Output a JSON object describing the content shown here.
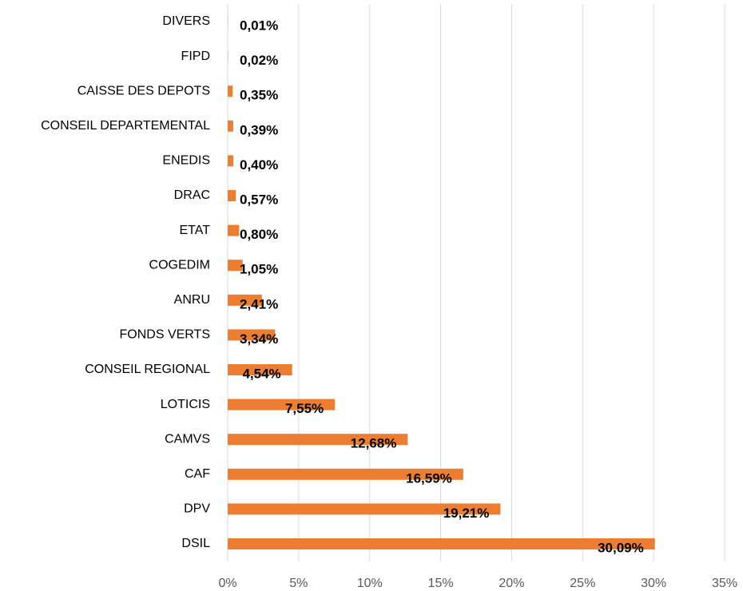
{
  "chart_data": {
    "type": "barh",
    "categories": [
      "DIVERS",
      "FIPD",
      "CAISSE DES DEPOTS",
      "CONSEIL DEPARTEMENTAL",
      "ENEDIS",
      "DRAC",
      "ETAT",
      "COGEDIM",
      "ANRU",
      "FONDS VERTS",
      "CONSEIL REGIONAL",
      "LOTICIS",
      "CAMVS",
      "CAF",
      "DPV",
      "DSIL"
    ],
    "values": [
      0.01,
      0.02,
      0.35,
      0.39,
      0.4,
      0.57,
      0.8,
      1.05,
      2.41,
      3.34,
      4.54,
      7.55,
      12.68,
      16.59,
      19.21,
      30.09
    ],
    "value_labels": [
      "0,01%",
      "0,02%",
      "0,35%",
      "0,39%",
      "0,40%",
      "0,57%",
      "0,80%",
      "1,05%",
      "2,41%",
      "3,34%",
      "4,54%",
      "7,55%",
      "12,68%",
      "16,59%",
      "19,21%",
      "30,09%"
    ],
    "color": "#ed7d31",
    "xlim": [
      0,
      35
    ],
    "xticks": [
      {
        "value": 0,
        "label": "0%"
      },
      {
        "value": 5,
        "label": "5%"
      },
      {
        "value": 10,
        "label": "10%"
      },
      {
        "value": 15,
        "label": "15%"
      },
      {
        "value": 20,
        "label": "20%"
      },
      {
        "value": 25,
        "label": "25%"
      },
      {
        "value": 30,
        "label": "30%"
      },
      {
        "value": 35,
        "label": "35%"
      }
    ],
    "grid": true
  }
}
